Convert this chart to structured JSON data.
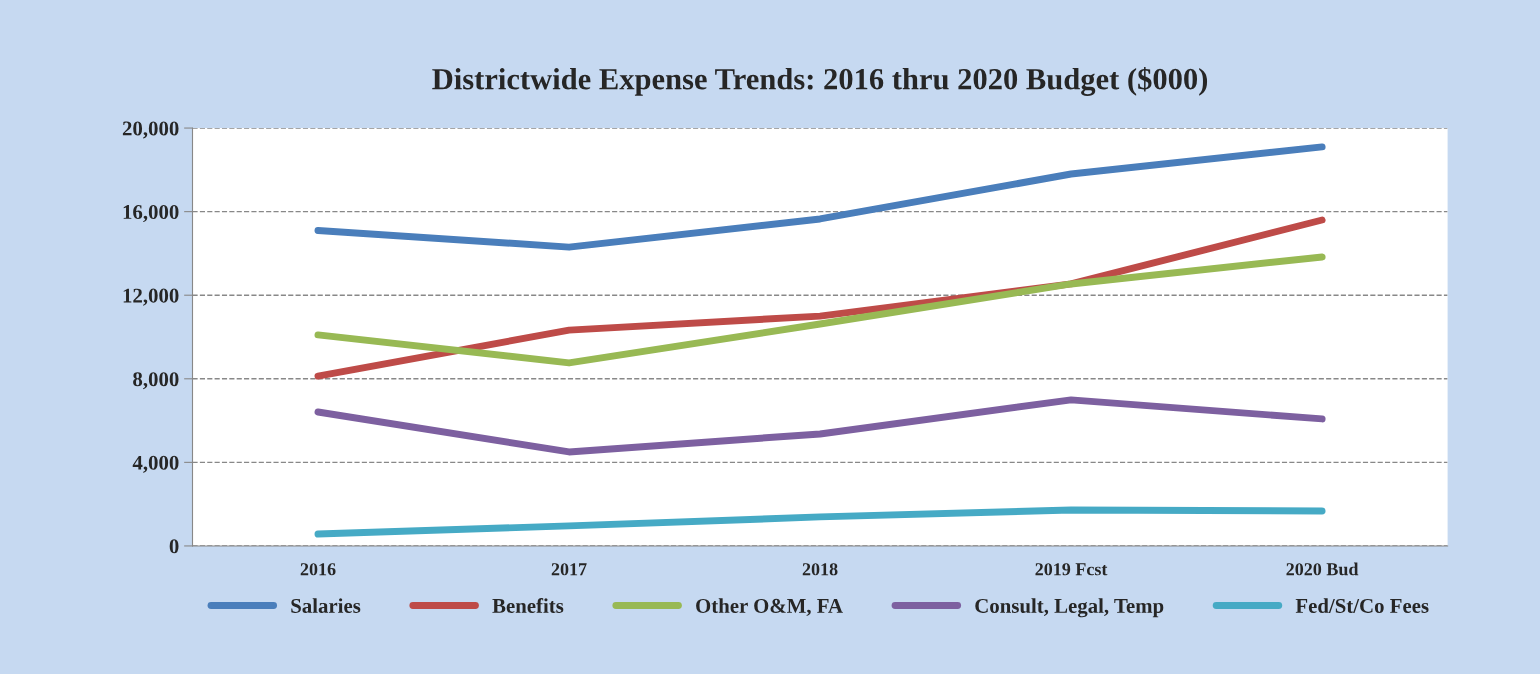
{
  "chart_data": {
    "type": "line",
    "title": "Districtwide Expense Trends: 2016 thru 2020 Budget ($000)",
    "categories": [
      "2016",
      "2017",
      "2018",
      "2019 Fcst",
      "2020 Bud"
    ],
    "series": [
      {
        "name": "Salaries",
        "color": "#4a7ebb",
        "values": [
          15100,
          14300,
          15650,
          17800,
          19100
        ]
      },
      {
        "name": "Benefits",
        "color": "#be4b48",
        "values": [
          8130,
          10330,
          11000,
          12540,
          15600
        ]
      },
      {
        "name": "Other O&M, FA",
        "color": "#98b954",
        "values": [
          10100,
          8760,
          10620,
          12540,
          13830
        ]
      },
      {
        "name": "Consult, Legal, Temp",
        "color": "#7d60a0",
        "values": [
          6410,
          4500,
          5360,
          6990,
          6080
        ]
      },
      {
        "name": "Fed/St/Co Fees",
        "color": "#46aac5",
        "values": [
          570,
          960,
          1390,
          1720,
          1670
        ]
      }
    ],
    "ylim": [
      0,
      20000
    ],
    "yticks": [
      {
        "value": 0,
        "label": "0"
      },
      {
        "value": 4000,
        "label": "4,000"
      },
      {
        "value": 8000,
        "label": "8,000"
      },
      {
        "value": 12000,
        "label": "12,000"
      },
      {
        "value": 16000,
        "label": "16,000"
      },
      {
        "value": 20000,
        "label": "20,000"
      }
    ],
    "grid": "y",
    "legend": "bottom",
    "marker": "none",
    "line_style": "solid"
  }
}
